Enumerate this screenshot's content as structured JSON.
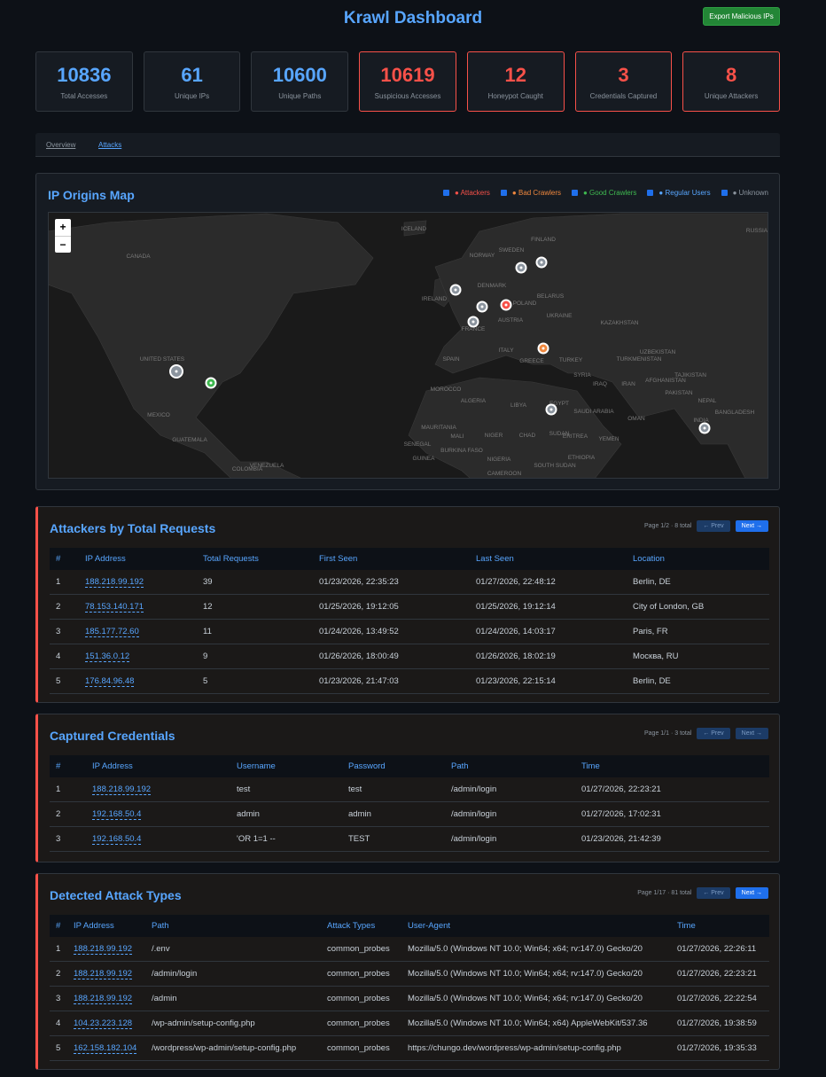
{
  "header": {
    "title": "Krawl Dashboard",
    "export_button": "Export Malicious IPs"
  },
  "stats": [
    {
      "value": 10836,
      "label": "Total Accesses",
      "alert": false
    },
    {
      "value": 61,
      "label": "Unique IPs",
      "alert": false
    },
    {
      "value": 10600,
      "label": "Unique Paths",
      "alert": false
    },
    {
      "value": 10619,
      "label": "Suspicious Accesses",
      "alert": true
    },
    {
      "value": 12,
      "label": "Honeypot Caught",
      "alert": true
    },
    {
      "value": 3,
      "label": "Credentials Captured",
      "alert": true
    },
    {
      "value": 8,
      "label": "Unique Attackers",
      "alert": true
    }
  ],
  "tabs": [
    "Overview",
    "Attacks"
  ],
  "map": {
    "title": "IP Origins Map",
    "zoom_in": "+",
    "zoom_out": "−",
    "legend": [
      {
        "label": "● Attackers",
        "color": "#f85149"
      },
      {
        "label": "● Bad Crawlers",
        "color": "#f0883e"
      },
      {
        "label": "● Good Crawlers",
        "color": "#3fb950"
      },
      {
        "label": "● Regular Users",
        "color": "#58a6ff"
      },
      {
        "label": "● Unknown",
        "color": "#8b949e"
      }
    ],
    "labels": [
      "CANADA",
      "UNITED STATES",
      "MEXICO",
      "GUATEMALA",
      "VENEZUELA",
      "COLOMBIA",
      "ICELAND",
      "FINLAND",
      "SWEDEN",
      "NORWAY",
      "DENMARK",
      "IRELAND",
      "POLAND",
      "BELARUS",
      "UKRAINE",
      "FRANCE",
      "AUSTRIA",
      "SPAIN",
      "ITALY",
      "GREECE",
      "TURKEY",
      "RUSSIA",
      "KAZAKHSTAN",
      "UZBEKISTAN",
      "TURKMENISTAN",
      "AFGHANISTAN",
      "PAKISTAN",
      "IRAN",
      "IRAQ",
      "SYRIA",
      "MOROCCO",
      "ALGERIA",
      "LIBYA",
      "EGYPT",
      "SAUDI ARABIA",
      "MAURITANIA",
      "MALI",
      "NIGER",
      "CHAD",
      "SUDAN",
      "OMAN",
      "YEMEN",
      "ERITREA",
      "ETHIOPIA",
      "SOUTH SUDAN",
      "NIGERIA",
      "SENEGAL",
      "GUINEA",
      "BURKINA FASO",
      "CAMEROON",
      "INDIA",
      "NEPAL",
      "BANGLADESH",
      "TAJIKISTAN"
    ]
  },
  "tables": [
    {
      "title": "Attackers by Total Requests",
      "page_info": "Page 1/2 · 8 total",
      "prev": "← Prev",
      "next": "Next →",
      "next_enabled": true,
      "columns": [
        "#",
        "IP Address",
        "Total Requests",
        "First Seen",
        "Last Seen",
        "Location"
      ],
      "rows": [
        [
          1,
          "188.218.99.192",
          39,
          "01/23/2026, 22:35:23",
          "01/27/2026, 22:48:12",
          "Berlin, DE"
        ],
        [
          2,
          "78.153.140.171",
          12,
          "01/25/2026, 19:12:05",
          "01/25/2026, 19:12:14",
          "City of London, GB"
        ],
        [
          3,
          "185.177.72.60",
          11,
          "01/24/2026, 13:49:52",
          "01/24/2026, 14:03:17",
          "Paris, FR"
        ],
        [
          4,
          "151.36.0.12",
          9,
          "01/26/2026, 18:00:49",
          "01/26/2026, 18:02:19",
          "Москва, RU"
        ],
        [
          5,
          "176.84.96.48",
          5,
          "01/23/2026, 21:47:03",
          "01/23/2026, 22:15:14",
          "Berlin, DE"
        ]
      ]
    },
    {
      "title": "Captured Credentials",
      "page_info": "Page 1/1 · 3 total",
      "prev": "← Prev",
      "next": "Next →",
      "next_enabled": false,
      "columns": [
        "#",
        "IP Address",
        "Username",
        "Password",
        "Path",
        "Time"
      ],
      "rows": [
        [
          1,
          "188.218.99.192",
          "test",
          "test",
          "/admin/login",
          "01/27/2026, 22:23:21"
        ],
        [
          2,
          "192.168.50.4",
          "admin",
          "admin",
          "/admin/login",
          "01/27/2026, 17:02:31"
        ],
        [
          3,
          "192.168.50.4",
          "'OR 1=1 --",
          "TEST",
          "/admin/login",
          "01/23/2026, 21:42:39"
        ]
      ]
    },
    {
      "title": "Detected Attack Types",
      "page_info": "Page 1/17 · 81 total",
      "prev": "← Prev",
      "next": "Next →",
      "next_enabled": true,
      "columns": [
        "#",
        "IP Address",
        "Path",
        "Attack Types",
        "User-Agent",
        "Time"
      ],
      "rows": [
        [
          1,
          "188.218.99.192",
          "/.env",
          "common_probes",
          "Mozilla/5.0 (Windows NT 10.0; Win64; x64; rv:147.0) Gecko/20",
          "01/27/2026, 22:26:11"
        ],
        [
          2,
          "188.218.99.192",
          "/admin/login",
          "common_probes",
          "Mozilla/5.0 (Windows NT 10.0; Win64; x64; rv:147.0) Gecko/20",
          "01/27/2026, 22:23:21"
        ],
        [
          3,
          "188.218.99.192",
          "/admin",
          "common_probes",
          "Mozilla/5.0 (Windows NT 10.0; Win64; x64; rv:147.0) Gecko/20",
          "01/27/2026, 22:22:54"
        ],
        [
          4,
          "104.23.223.128",
          "/wp-admin/setup-config.php",
          "common_probes",
          "Mozilla/5.0 (Windows NT 10.0; Win64; x64) AppleWebKit/537.36",
          "01/27/2026, 19:38:59"
        ],
        [
          5,
          "162.158.182.104",
          "/wordpress/wp-admin/setup-config.php",
          "common_probes",
          "https://chungo.dev/wordpress/wp-admin/setup-config.php",
          "01/27/2026, 19:35:33"
        ]
      ]
    }
  ]
}
